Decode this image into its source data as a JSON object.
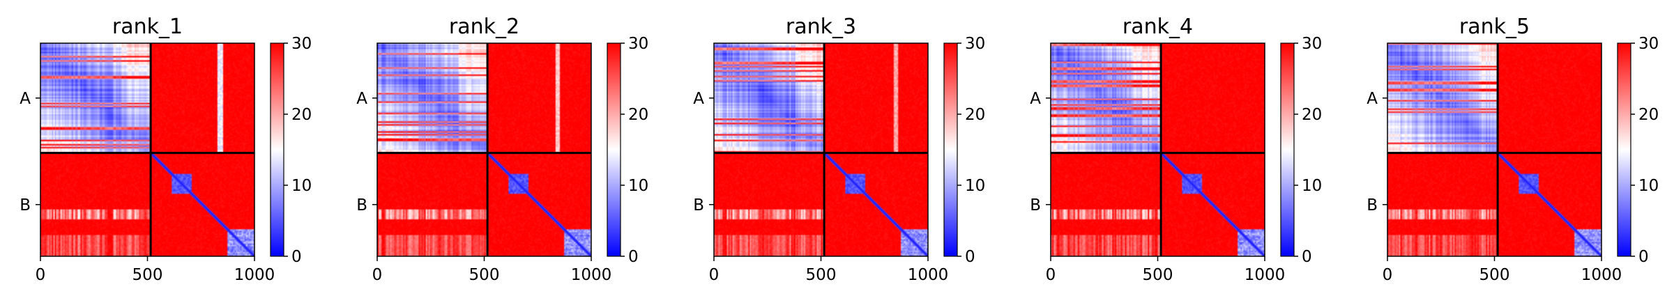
{
  "chart_data": {
    "type": "heatmap",
    "colormap": {
      "low": "#0000ff",
      "mid": "#ffffff",
      "high": "#ff0000",
      "vmin": 0,
      "vmax": 30
    },
    "colorbar_ticks": [
      0,
      10,
      20,
      30
    ],
    "x_ticks": [
      0,
      500,
      1000
    ],
    "xlim": [
      0,
      1000
    ],
    "chains": [
      {
        "label": "A",
        "start": 0,
        "end": 515
      },
      {
        "label": "B",
        "start": 515,
        "end": 1000
      }
    ],
    "panels": [
      {
        "title": "rank_1",
        "features": [
          {
            "type": "stripe",
            "at": 840,
            "width": 12,
            "value": 12
          }
        ]
      },
      {
        "title": "rank_2",
        "features": [
          {
            "type": "stripe",
            "at": 845,
            "width": 10,
            "value": 16
          }
        ]
      },
      {
        "title": "rank_3",
        "features": [
          {
            "type": "stripe",
            "at": 850,
            "width": 10,
            "value": 18
          }
        ]
      },
      {
        "title": "rank_4",
        "features": []
      },
      {
        "title": "rank_5",
        "features": []
      }
    ]
  }
}
